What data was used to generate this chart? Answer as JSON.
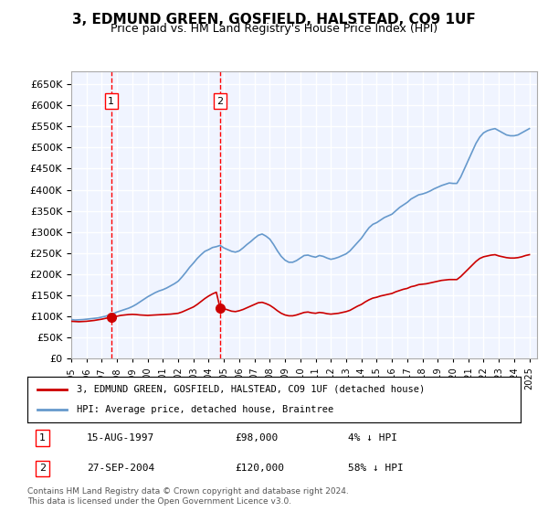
{
  "title": "3, EDMUND GREEN, GOSFIELD, HALSTEAD, CO9 1UF",
  "subtitle": "Price paid vs. HM Land Registry's House Price Index (HPI)",
  "legend_label_red": "3, EDMUND GREEN, GOSFIELD, HALSTEAD, CO9 1UF (detached house)",
  "legend_label_blue": "HPI: Average price, detached house, Braintree",
  "footnote": "Contains HM Land Registry data © Crown copyright and database right 2024.\nThis data is licensed under the Open Government Licence v3.0.",
  "ylabel": "",
  "ylim": [
    0,
    680000
  ],
  "yticks": [
    0,
    50000,
    100000,
    150000,
    200000,
    250000,
    300000,
    350000,
    400000,
    450000,
    500000,
    550000,
    600000,
    650000
  ],
  "xlim_start": 1995.0,
  "xlim_end": 2025.5,
  "purchases": [
    {
      "num": 1,
      "date_label": "15-AUG-1997",
      "date_x": 1997.62,
      "price": 98000,
      "price_label": "£98,000",
      "hpi_rel": "4% ↓ HPI"
    },
    {
      "num": 2,
      "date_label": "27-SEP-2004",
      "date_x": 2004.74,
      "price": 120000,
      "price_label": "£120,000",
      "hpi_rel": "58% ↓ HPI"
    }
  ],
  "background_color": "#f0f4ff",
  "plot_bg_color": "#f0f4ff",
  "grid_color": "#ffffff",
  "line_color_red": "#cc0000",
  "line_color_blue": "#6699cc",
  "hpi_data_x": [
    1995.0,
    1995.25,
    1995.5,
    1995.75,
    1996.0,
    1996.25,
    1996.5,
    1996.75,
    1997.0,
    1997.25,
    1997.5,
    1997.75,
    1998.0,
    1998.25,
    1998.5,
    1998.75,
    1999.0,
    1999.25,
    1999.5,
    1999.75,
    2000.0,
    2000.25,
    2000.5,
    2000.75,
    2001.0,
    2001.25,
    2001.5,
    2001.75,
    2002.0,
    2002.25,
    2002.5,
    2002.75,
    2003.0,
    2003.25,
    2003.5,
    2003.75,
    2004.0,
    2004.25,
    2004.5,
    2004.75,
    2005.0,
    2005.25,
    2005.5,
    2005.75,
    2006.0,
    2006.25,
    2006.5,
    2006.75,
    2007.0,
    2007.25,
    2007.5,
    2007.75,
    2008.0,
    2008.25,
    2008.5,
    2008.75,
    2009.0,
    2009.25,
    2009.5,
    2009.75,
    2010.0,
    2010.25,
    2010.5,
    2010.75,
    2011.0,
    2011.25,
    2011.5,
    2011.75,
    2012.0,
    2012.25,
    2012.5,
    2012.75,
    2013.0,
    2013.25,
    2013.5,
    2013.75,
    2014.0,
    2014.25,
    2014.5,
    2014.75,
    2015.0,
    2015.25,
    2015.5,
    2015.75,
    2016.0,
    2016.25,
    2016.5,
    2016.75,
    2017.0,
    2017.25,
    2017.5,
    2017.75,
    2018.0,
    2018.25,
    2018.5,
    2018.75,
    2019.0,
    2019.25,
    2019.5,
    2019.75,
    2020.0,
    2020.25,
    2020.5,
    2020.75,
    2021.0,
    2021.25,
    2021.5,
    2021.75,
    2022.0,
    2022.25,
    2022.5,
    2022.75,
    2023.0,
    2023.25,
    2023.5,
    2023.75,
    2024.0,
    2024.25,
    2024.5,
    2024.75,
    2025.0
  ],
  "hpi_data_y": [
    92000,
    91000,
    91500,
    92000,
    93000,
    94000,
    95000,
    96000,
    98000,
    100000,
    103000,
    106000,
    110000,
    113000,
    116000,
    119000,
    123000,
    128000,
    134000,
    140000,
    146000,
    151000,
    156000,
    160000,
    163000,
    167000,
    172000,
    177000,
    183000,
    193000,
    204000,
    216000,
    226000,
    237000,
    246000,
    254000,
    258000,
    263000,
    265000,
    268000,
    262000,
    258000,
    254000,
    252000,
    255000,
    262000,
    270000,
    277000,
    285000,
    292000,
    295000,
    290000,
    283000,
    270000,
    255000,
    242000,
    233000,
    228000,
    228000,
    232000,
    238000,
    244000,
    245000,
    242000,
    240000,
    244000,
    242000,
    238000,
    235000,
    237000,
    240000,
    244000,
    248000,
    255000,
    265000,
    275000,
    285000,
    298000,
    310000,
    318000,
    322000,
    328000,
    334000,
    338000,
    342000,
    350000,
    358000,
    364000,
    370000,
    378000,
    383000,
    388000,
    390000,
    393000,
    397000,
    402000,
    406000,
    410000,
    413000,
    416000,
    415000,
    415000,
    430000,
    450000,
    470000,
    490000,
    510000,
    525000,
    535000,
    540000,
    543000,
    545000,
    540000,
    535000,
    530000,
    528000,
    528000,
    530000,
    535000,
    540000,
    545000
  ],
  "red_data_x": [
    1995.0,
    1995.25,
    1995.5,
    1995.75,
    1996.0,
    1996.25,
    1996.5,
    1996.75,
    1997.0,
    1997.25,
    1997.5,
    1997.75,
    1998.0,
    1998.25,
    1998.5,
    1998.75,
    1999.0,
    1999.25,
    1999.5,
    1999.75,
    2000.0,
    2000.25,
    2000.5,
    2000.75,
    2001.0,
    2001.25,
    2001.5,
    2001.75,
    2002.0,
    2002.25,
    2002.5,
    2002.75,
    2003.0,
    2003.25,
    2003.5,
    2003.75,
    2004.0,
    2004.25,
    2004.5,
    2004.74,
    2005.0,
    2005.25,
    2005.5,
    2005.75,
    2006.0,
    2006.25,
    2006.5,
    2006.75,
    2007.0,
    2007.25,
    2007.5,
    2007.75,
    2008.0,
    2008.25,
    2008.5,
    2008.75,
    2009.0,
    2009.25,
    2009.5,
    2009.75,
    2010.0,
    2010.25,
    2010.5,
    2010.75,
    2011.0,
    2011.25,
    2011.5,
    2011.75,
    2012.0,
    2012.25,
    2012.5,
    2012.75,
    2013.0,
    2013.25,
    2013.5,
    2013.75,
    2014.0,
    2014.25,
    2014.5,
    2014.75,
    2015.0,
    2015.25,
    2015.5,
    2015.75,
    2016.0,
    2016.25,
    2016.5,
    2016.75,
    2017.0,
    2017.25,
    2017.5,
    2017.75,
    2018.0,
    2018.25,
    2018.5,
    2018.75,
    2019.0,
    2019.25,
    2019.5,
    2019.75,
    2020.0,
    2020.25,
    2020.5,
    2020.75,
    2021.0,
    2021.25,
    2021.5,
    2021.75,
    2022.0,
    2022.25,
    2022.5,
    2022.75,
    2023.0,
    2023.25,
    2023.5,
    2023.75,
    2024.0,
    2024.25,
    2024.5,
    2024.75,
    2025.0
  ],
  "red_data_y": [
    88000,
    87500,
    87000,
    87500,
    88000,
    89000,
    90000,
    91500,
    93000,
    95000,
    97000,
    98500,
    100000,
    102000,
    103000,
    104000,
    104500,
    104000,
    103000,
    102500,
    102000,
    102500,
    103000,
    103500,
    104000,
    104500,
    105000,
    106000,
    107000,
    110000,
    114000,
    118000,
    122000,
    128000,
    135000,
    142000,
    148000,
    153000,
    157000,
    120000,
    118000,
    115000,
    112000,
    111000,
    113000,
    116000,
    120000,
    124000,
    128000,
    132000,
    133000,
    130000,
    126000,
    120000,
    113000,
    107000,
    103000,
    101000,
    101000,
    103000,
    106000,
    109000,
    110000,
    108000,
    107000,
    109000,
    108000,
    106000,
    105000,
    106000,
    107000,
    109000,
    111000,
    114000,
    119000,
    124000,
    128000,
    134000,
    139000,
    143000,
    145000,
    148000,
    150000,
    152000,
    154000,
    158000,
    161000,
    164000,
    166000,
    170000,
    172000,
    175000,
    176000,
    177000,
    179000,
    181000,
    183000,
    185000,
    186000,
    187000,
    187000,
    187000,
    194000,
    203000,
    212000,
    221000,
    230000,
    237000,
    241000,
    243000,
    245000,
    246000,
    243000,
    241000,
    239000,
    238000,
    238000,
    239000,
    241000,
    244000,
    246000
  ]
}
